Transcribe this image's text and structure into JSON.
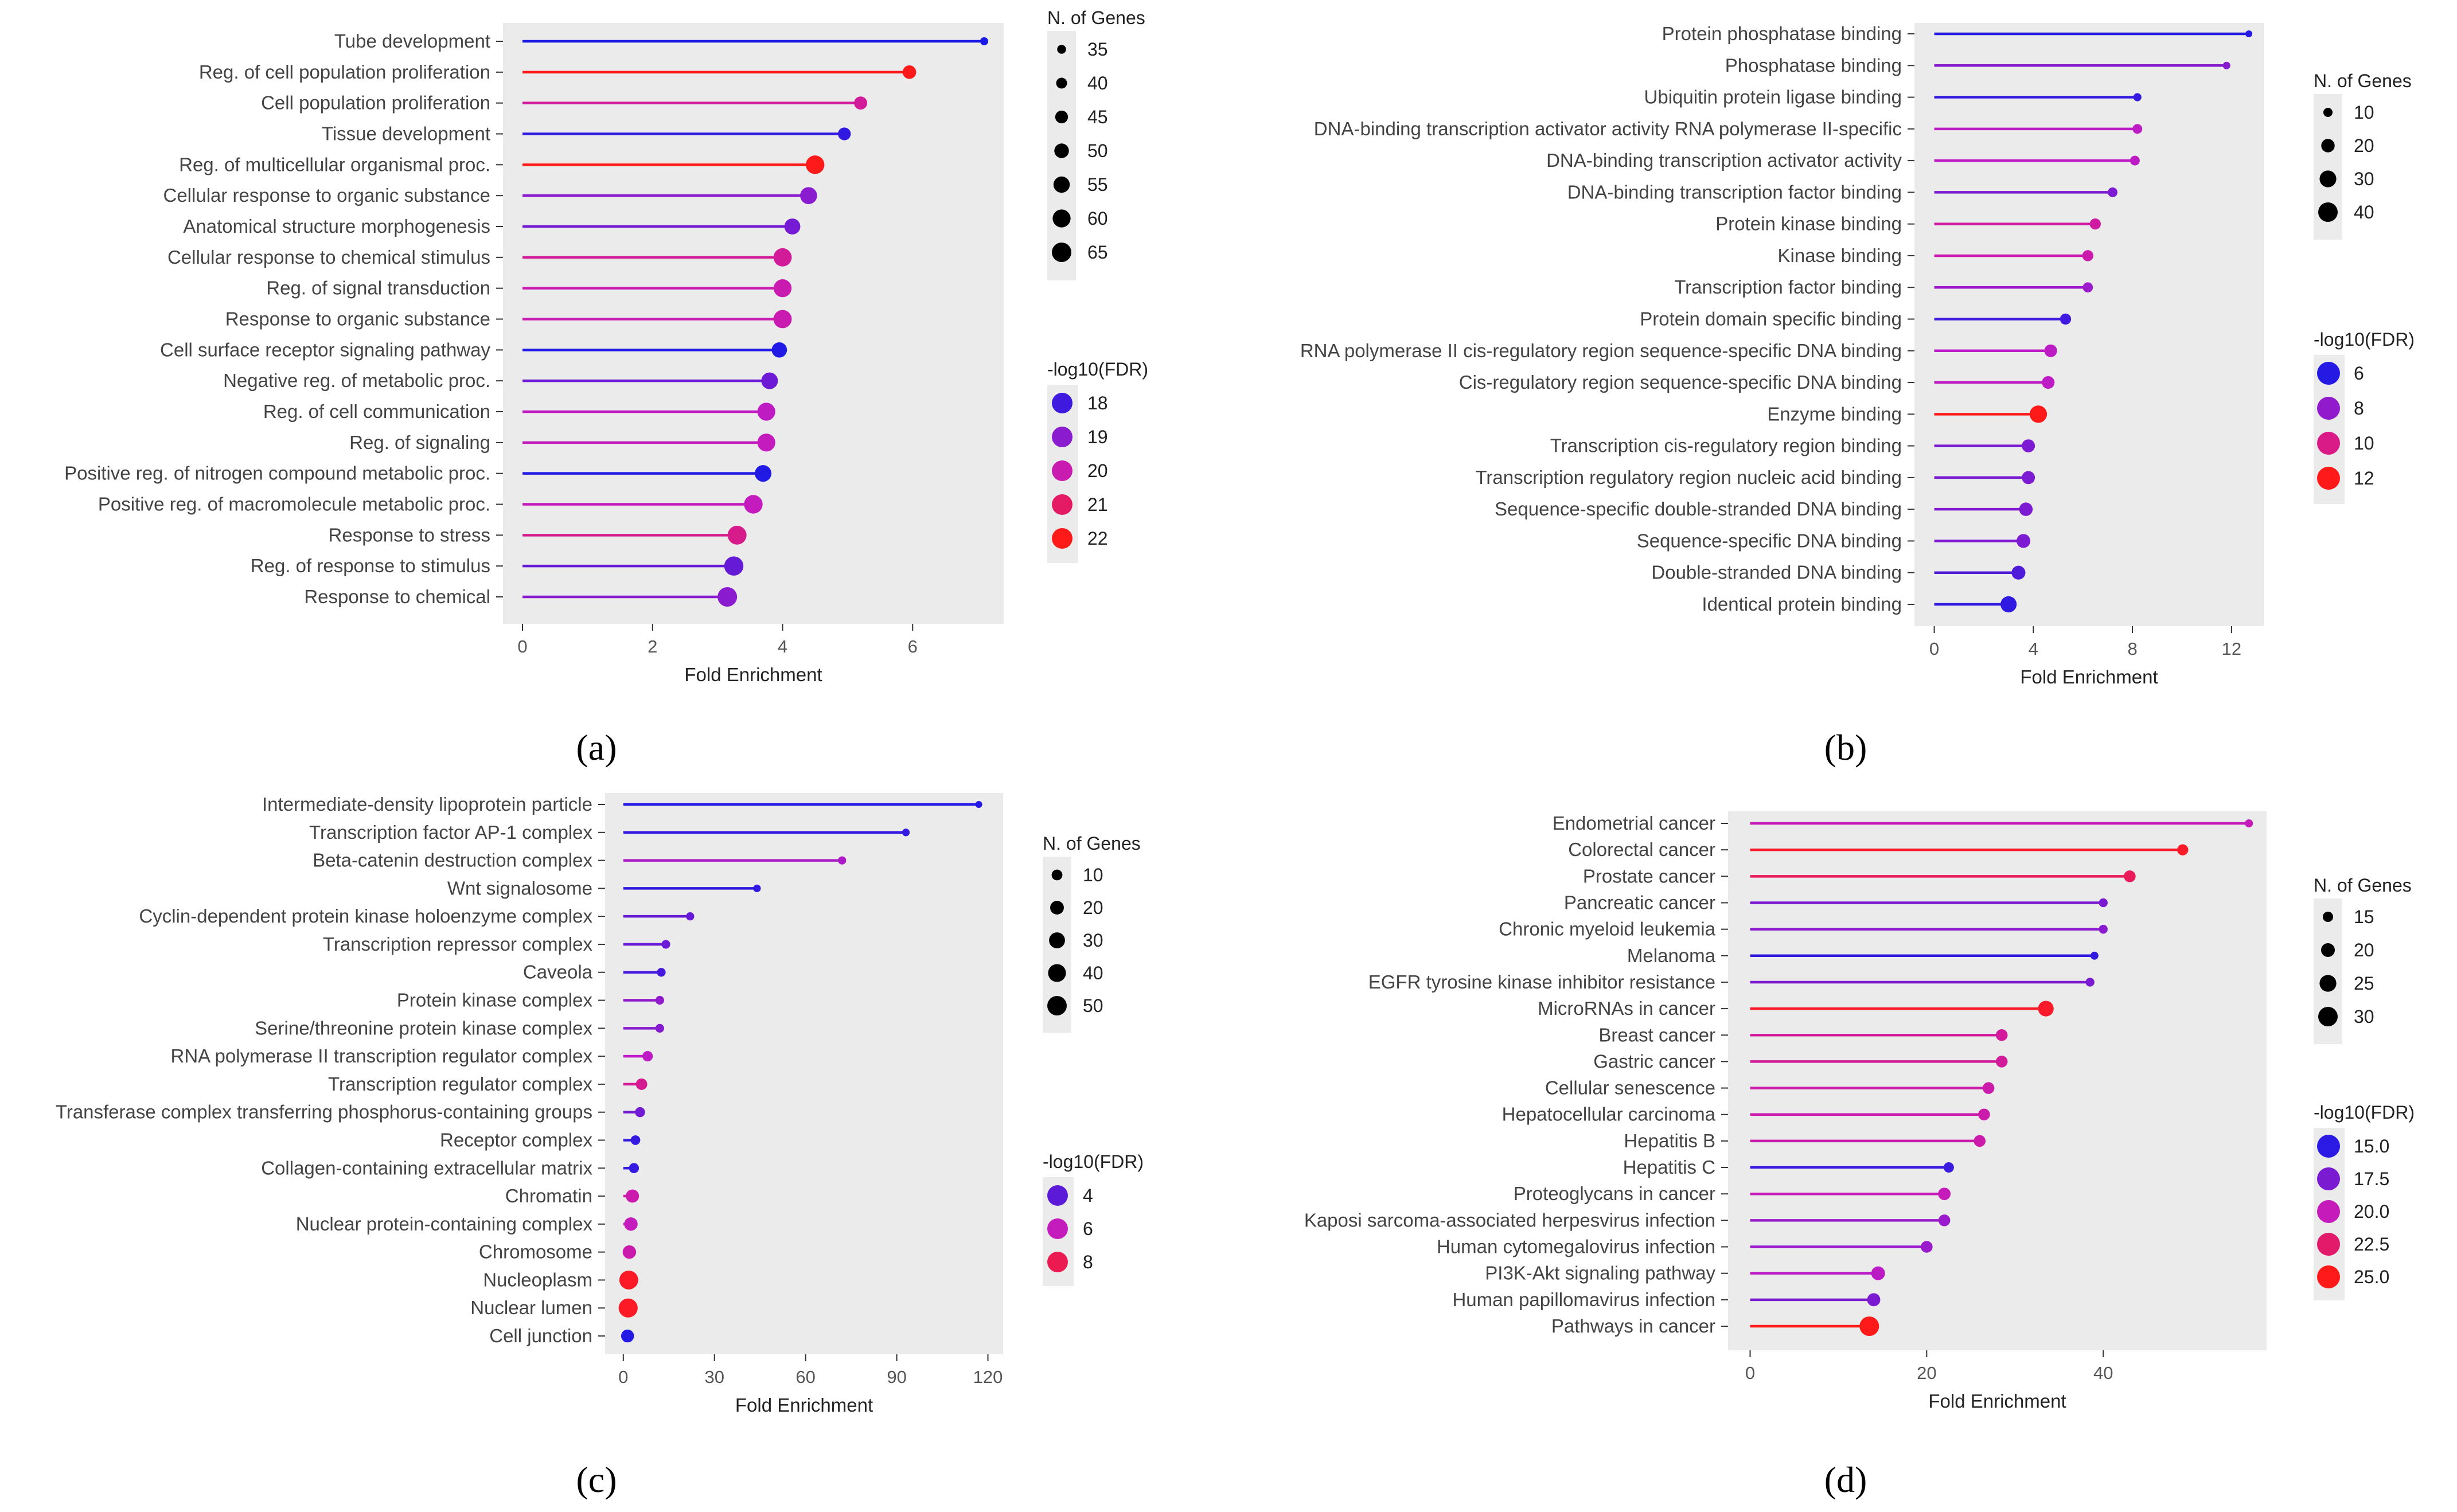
{
  "colors": {
    "low": "#1a1ae6",
    "mid": "#c21bc2",
    "high": "#ff1a1a",
    "panel_bg": "#ebebeb"
  },
  "chart_data": [
    {
      "panel": "(a)",
      "type": "lollipop",
      "xlabel": "Fold Enrichment",
      "xlim": [
        -0.3,
        7.4
      ],
      "xticks": [
        0,
        2,
        4,
        6
      ],
      "size_legend": {
        "title": "N. of Genes",
        "values": [
          35,
          40,
          45,
          50,
          55,
          60,
          65
        ]
      },
      "color_legend": {
        "title": "-log10(FDR)",
        "values": [
          18,
          19,
          20,
          21,
          22
        ],
        "range": [
          17.5,
          22
        ]
      },
      "terms": [
        {
          "label": "Tube development",
          "fold": 7.1,
          "genes": 33,
          "neglog10fdr": 17.5
        },
        {
          "label": "Reg. of cell population proliferation",
          "fold": 5.95,
          "genes": 47,
          "neglog10fdr": 22
        },
        {
          "label": "Cell population proliferation",
          "fold": 5.2,
          "genes": 46,
          "neglog10fdr": 20.3
        },
        {
          "label": "Tissue development",
          "fold": 4.95,
          "genes": 45,
          "neglog10fdr": 17.8
        },
        {
          "label": "Reg. of multicellular organismal proc.",
          "fold": 4.5,
          "genes": 62,
          "neglog10fdr": 22
        },
        {
          "label": "Cellular response to organic substance",
          "fold": 4.4,
          "genes": 57,
          "neglog10fdr": 19
        },
        {
          "label": "Anatomical structure morphogenesis",
          "fold": 4.15,
          "genes": 54,
          "neglog10fdr": 18.7
        },
        {
          "label": "Cellular response to chemical stimulus",
          "fold": 4.0,
          "genes": 61,
          "neglog10fdr": 20.3
        },
        {
          "label": "Reg. of signal transduction",
          "fold": 4.0,
          "genes": 60,
          "neglog10fdr": 20
        },
        {
          "label": "Response to organic substance",
          "fold": 4.0,
          "genes": 61,
          "neglog10fdr": 20
        },
        {
          "label": "Cell surface receptor signaling pathway",
          "fold": 3.95,
          "genes": 52,
          "neglog10fdr": 17.6
        },
        {
          "label": "Negative reg. of metabolic proc.",
          "fold": 3.8,
          "genes": 56,
          "neglog10fdr": 18.6
        },
        {
          "label": "Reg. of cell communication",
          "fold": 3.75,
          "genes": 60,
          "neglog10fdr": 19.7
        },
        {
          "label": "Reg. of signaling",
          "fold": 3.75,
          "genes": 60,
          "neglog10fdr": 19.8
        },
        {
          "label": "Positive reg. of nitrogen compound metabolic proc.",
          "fold": 3.7,
          "genes": 56,
          "neglog10fdr": 17.6
        },
        {
          "label": "Positive reg. of macromolecule metabolic proc.",
          "fold": 3.55,
          "genes": 62,
          "neglog10fdr": 19.8
        },
        {
          "label": "Response to stress",
          "fold": 3.3,
          "genes": 63,
          "neglog10fdr": 20.5
        },
        {
          "label": "Reg. of response to stimulus",
          "fold": 3.25,
          "genes": 64,
          "neglog10fdr": 18.5
        },
        {
          "label": "Response to chemical",
          "fold": 3.15,
          "genes": 65,
          "neglog10fdr": 19
        }
      ]
    },
    {
      "panel": "(b)",
      "type": "lollipop",
      "xlabel": "Fold Enrichment",
      "xlim": [
        -0.8,
        13.3
      ],
      "xticks": [
        0,
        4,
        8,
        12
      ],
      "size_legend": {
        "title": "N. of Genes",
        "values": [
          10,
          20,
          30,
          40
        ]
      },
      "color_legend": {
        "title": "-log10(FDR)",
        "values": [
          6,
          8,
          10,
          12
        ],
        "range": [
          5.8,
          12
        ]
      },
      "terms": [
        {
          "label": "Protein phosphatase binding",
          "fold": 12.7,
          "genes": 6,
          "neglog10fdr": 6
        },
        {
          "label": "Phosphatase binding",
          "fold": 11.8,
          "genes": 7,
          "neglog10fdr": 7.8
        },
        {
          "label": "Ubiquitin protein ligase binding",
          "fold": 8.2,
          "genes": 8,
          "neglog10fdr": 6.3
        },
        {
          "label": "DNA-binding transcription activator activity RNA polymerase II-specific",
          "fold": 8.2,
          "genes": 11,
          "neglog10fdr": 8.8
        },
        {
          "label": "DNA-binding transcription activator activity",
          "fold": 8.1,
          "genes": 11,
          "neglog10fdr": 8.8
        },
        {
          "label": "DNA-binding transcription factor binding",
          "fold": 7.2,
          "genes": 11,
          "neglog10fdr": 7.6
        },
        {
          "label": "Protein kinase binding",
          "fold": 6.5,
          "genes": 14,
          "neglog10fdr": 9.5
        },
        {
          "label": "Kinase binding",
          "fold": 6.2,
          "genes": 14,
          "neglog10fdr": 9.3
        },
        {
          "label": "Transcription factor binding",
          "fold": 6.2,
          "genes": 12,
          "neglog10fdr": 8.2
        },
        {
          "label": "Protein domain specific binding",
          "fold": 5.3,
          "genes": 14,
          "neglog10fdr": 6.5
        },
        {
          "label": "RNA polymerase II cis-regulatory region sequence-specific DNA binding",
          "fold": 4.7,
          "genes": 18,
          "neglog10fdr": 8.8
        },
        {
          "label": "Cis-regulatory region sequence-specific DNA binding",
          "fold": 4.6,
          "genes": 18,
          "neglog10fdr": 8.8
        },
        {
          "label": "Enzyme binding",
          "fold": 4.2,
          "genes": 32,
          "neglog10fdr": 12
        },
        {
          "label": "Transcription cis-regulatory region binding",
          "fold": 3.8,
          "genes": 19,
          "neglog10fdr": 7.6
        },
        {
          "label": "Transcription regulatory region nucleic acid binding",
          "fold": 3.8,
          "genes": 19,
          "neglog10fdr": 7.6
        },
        {
          "label": "Sequence-specific double-stranded DNA binding",
          "fold": 3.7,
          "genes": 20,
          "neglog10fdr": 7.6
        },
        {
          "label": "Sequence-specific DNA binding",
          "fold": 3.6,
          "genes": 21,
          "neglog10fdr": 7.6
        },
        {
          "label": "Double-stranded DNA binding",
          "fold": 3.4,
          "genes": 21,
          "neglog10fdr": 6.8
        },
        {
          "label": "Identical protein binding",
          "fold": 3.0,
          "genes": 28,
          "neglog10fdr": 6.2
        }
      ]
    },
    {
      "panel": "(c)",
      "type": "lollipop",
      "xlabel": "Fold Enrichment",
      "xlim": [
        -6,
        125
      ],
      "xticks": [
        0,
        30,
        60,
        90,
        120
      ],
      "size_legend": {
        "title": "N. of Genes",
        "values": [
          10,
          20,
          30,
          40,
          50
        ]
      },
      "color_legend": {
        "title": "-log10(FDR)",
        "values": [
          4,
          6,
          8
        ],
        "range": [
          2.8,
          9
        ]
      },
      "terms": [
        {
          "label": "Intermediate-density lipoprotein particle",
          "fold": 117,
          "genes": 2,
          "neglog10fdr": 3
        },
        {
          "label": "Transcription factor AP-1 complex",
          "fold": 93,
          "genes": 3,
          "neglog10fdr": 3.3
        },
        {
          "label": "Beta-catenin destruction complex",
          "fold": 72,
          "genes": 4,
          "neglog10fdr": 5.5
        },
        {
          "label": "Wnt signalosome",
          "fold": 44,
          "genes": 3,
          "neglog10fdr": 3.2
        },
        {
          "label": "Cyclin-dependent protein kinase holoenzyme complex",
          "fold": 22,
          "genes": 4,
          "neglog10fdr": 4.2
        },
        {
          "label": "Transcription repressor complex",
          "fold": 14,
          "genes": 5,
          "neglog10fdr": 4.3
        },
        {
          "label": "Caveola",
          "fold": 12.5,
          "genes": 5,
          "neglog10fdr": 3.6
        },
        {
          "label": "Protein kinase complex",
          "fold": 12,
          "genes": 5,
          "neglog10fdr": 5
        },
        {
          "label": "Serine/threonine protein kinase complex",
          "fold": 12,
          "genes": 5,
          "neglog10fdr": 4.8
        },
        {
          "label": "RNA polymerase II transcription regulator complex",
          "fold": 8,
          "genes": 9,
          "neglog10fdr": 5.8
        },
        {
          "label": "Transcription regulator complex",
          "fold": 6,
          "genes": 12,
          "neglog10fdr": 6.8
        },
        {
          "label": "Transferase complex transferring phosphorus-containing groups",
          "fold": 5.5,
          "genes": 8,
          "neglog10fdr": 4.4
        },
        {
          "label": "Receptor complex",
          "fold": 4,
          "genes": 7,
          "neglog10fdr": 3.3
        },
        {
          "label": "Collagen-containing extracellular matrix",
          "fold": 3.5,
          "genes": 8,
          "neglog10fdr": 3.3
        },
        {
          "label": "Chromatin",
          "fold": 3,
          "genes": 18,
          "neglog10fdr": 6.3
        },
        {
          "label": "Nuclear protein-containing complex",
          "fold": 2.5,
          "genes": 19,
          "neglog10fdr": 6
        },
        {
          "label": "Chromosome",
          "fold": 2,
          "genes": 19,
          "neglog10fdr": 6.3
        },
        {
          "label": "Nucleoplasm",
          "fold": 1.8,
          "genes": 46,
          "neglog10fdr": 8.8
        },
        {
          "label": "Nuclear lumen",
          "fold": 1.6,
          "genes": 47,
          "neglog10fdr": 8.8
        },
        {
          "label": "Cell junction",
          "fold": 1.4,
          "genes": 17,
          "neglog10fdr": 3
        }
      ]
    },
    {
      "panel": "(d)",
      "type": "lollipop",
      "xlabel": "Fold Enrichment",
      "xlim": [
        -2.5,
        58.5
      ],
      "xticks": [
        0,
        20,
        40
      ],
      "size_legend": {
        "title": "N. of Genes",
        "values": [
          15,
          20,
          25,
          30
        ]
      },
      "color_legend": {
        "title": "-log10(FDR)",
        "values": [
          15.0,
          17.5,
          20.0,
          22.5,
          25.0
        ],
        "range": [
          14.5,
          25
        ]
      },
      "terms": [
        {
          "label": "Endometrial cancer",
          "fold": 56.5,
          "genes": 12,
          "neglog10fdr": 20
        },
        {
          "label": "Colorectal cancer",
          "fold": 49,
          "genes": 16,
          "neglog10fdr": 24.5
        },
        {
          "label": "Prostate cancer",
          "fold": 43,
          "genes": 17,
          "neglog10fdr": 23
        },
        {
          "label": "Pancreatic cancer",
          "fold": 40,
          "genes": 13,
          "neglog10fdr": 17.5
        },
        {
          "label": "Chronic myeloid leukemia",
          "fold": 40,
          "genes": 13,
          "neglog10fdr": 18
        },
        {
          "label": "Melanoma",
          "fold": 39,
          "genes": 12,
          "neglog10fdr": 15.2
        },
        {
          "label": "EGFR tyrosine kinase inhibitor resistance",
          "fold": 38.5,
          "genes": 13,
          "neglog10fdr": 17.5
        },
        {
          "label": "MicroRNAs in cancer",
          "fold": 33.5,
          "genes": 23,
          "neglog10fdr": 24.5
        },
        {
          "label": "Breast cancer",
          "fold": 28.5,
          "genes": 17,
          "neglog10fdr": 21
        },
        {
          "label": "Gastric cancer",
          "fold": 28.5,
          "genes": 17,
          "neglog10fdr": 21
        },
        {
          "label": "Cellular senescence",
          "fold": 27,
          "genes": 17,
          "neglog10fdr": 20.5
        },
        {
          "label": "Hepatocellular carcinoma",
          "fold": 26.5,
          "genes": 17,
          "neglog10fdr": 20.5
        },
        {
          "label": "Hepatitis B",
          "fold": 26,
          "genes": 17,
          "neglog10fdr": 20.5
        },
        {
          "label": "Hepatitis C",
          "fold": 22.5,
          "genes": 15,
          "neglog10fdr": 15.5
        },
        {
          "label": "Proteoglycans in cancer",
          "fold": 22,
          "genes": 18,
          "neglog10fdr": 20
        },
        {
          "label": "Kaposi sarcoma-associated herpesvirus infection",
          "fold": 22,
          "genes": 17,
          "neglog10fdr": 18.5
        },
        {
          "label": "Human cytomegalovirus infection",
          "fold": 20,
          "genes": 17,
          "neglog10fdr": 18.5
        },
        {
          "label": "PI3K-Akt signaling pathway",
          "fold": 14.5,
          "genes": 20,
          "neglog10fdr": 19.5
        },
        {
          "label": "Human papillomavirus infection",
          "fold": 14,
          "genes": 19,
          "neglog10fdr": 17.5
        },
        {
          "label": "Pathways in cancer",
          "fold": 13.5,
          "genes": 30,
          "neglog10fdr": 25
        }
      ]
    }
  ]
}
